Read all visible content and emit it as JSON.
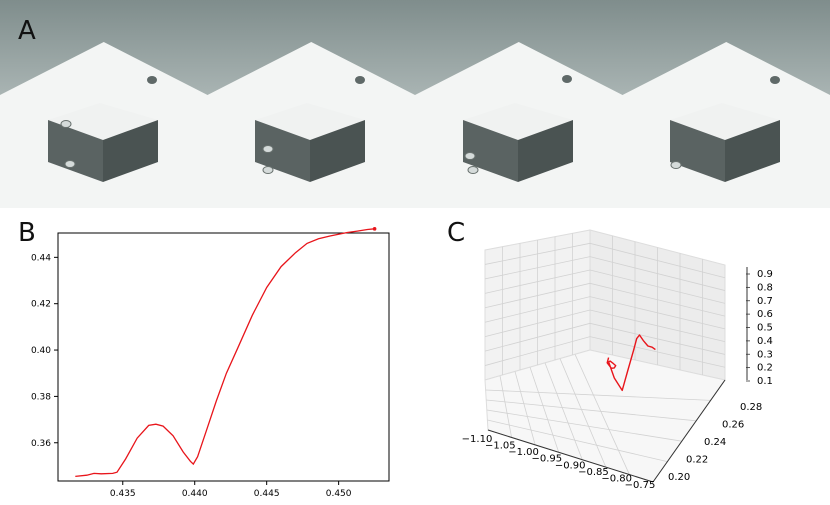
{
  "panels": {
    "a_label": "A",
    "b_label": "B",
    "c_label": "C"
  },
  "frames": [
    {
      "name": "frame-1"
    },
    {
      "name": "frame-2"
    },
    {
      "name": "frame-3"
    },
    {
      "name": "frame-4"
    }
  ],
  "colors": {
    "wall": "#8e9c9b",
    "floor": "#f3f5f4",
    "box_top": "#f0f2f1",
    "box_left": "#5a6362",
    "box_right": "#4a5352",
    "line": "#e8151b"
  },
  "chart_data": [
    {
      "type": "line",
      "title": "",
      "xlabel": "",
      "ylabel": "",
      "xlim": [
        0.4305,
        0.4535
      ],
      "ylim": [
        0.3435,
        0.4505
      ],
      "xticks": [
        "0.435",
        "0.440",
        "0.445",
        "0.450"
      ],
      "xtick_values": [
        0.435,
        0.44,
        0.445,
        0.45
      ],
      "yticks": [
        "0.36",
        "0.38",
        "0.40",
        "0.42",
        "0.44"
      ],
      "ytick_values": [
        0.36,
        0.38,
        0.4,
        0.42,
        0.44
      ],
      "series": [
        {
          "x": [
            0.4317,
            0.4325,
            0.433,
            0.4335,
            0.4343,
            0.4346,
            0.4352,
            0.436,
            0.4368,
            0.4373,
            0.4378,
            0.4385,
            0.4392,
            0.4397,
            0.4399,
            0.4402,
            0.4408,
            0.4415,
            0.4422,
            0.443,
            0.444,
            0.445,
            0.446,
            0.447,
            0.4478,
            0.4486,
            0.4494,
            0.45,
            0.4506,
            0.4513,
            0.452,
            0.4525
          ],
          "y": [
            0.3455,
            0.346,
            0.3468,
            0.3466,
            0.3468,
            0.3473,
            0.353,
            0.362,
            0.3675,
            0.368,
            0.3672,
            0.363,
            0.356,
            0.352,
            0.3508,
            0.354,
            0.365,
            0.378,
            0.39,
            0.401,
            0.415,
            0.427,
            0.436,
            0.442,
            0.446,
            0.448,
            0.4492,
            0.45,
            0.4507,
            0.4513,
            0.452,
            0.4523
          ]
        }
      ]
    },
    {
      "type": "line",
      "title": "",
      "xlabel": "",
      "ylabel": "",
      "xlim": [
        -1.1,
        -0.75
      ],
      "ylim": [
        0.2,
        0.28
      ],
      "zlim": [
        0.1,
        0.9
      ],
      "xticks": [
        "−1.10",
        "−1.05",
        "−1.00",
        "−0.95",
        "−0.90",
        "−0.85",
        "−0.80",
        "−0.75"
      ],
      "yticks": [
        "0.20",
        "0.22",
        "0.24",
        "0.26",
        "0.28"
      ],
      "zticks": [
        "0.1",
        "0.2",
        "0.3",
        "0.4",
        "0.5",
        "0.6",
        "0.7",
        "0.8",
        "0.9"
      ],
      "series": [
        {
          "x": [
            -0.93,
            -0.935,
            -0.928,
            -0.92,
            -0.915,
            -0.918,
            -0.925,
            -0.93,
            -0.92,
            -0.905,
            -0.895,
            -0.885,
            -0.88,
            -0.876,
            -0.87,
            -0.862,
            -0.855,
            -0.85
          ],
          "y": [
            0.245,
            0.246,
            0.247,
            0.246,
            0.245,
            0.244,
            0.244,
            0.245,
            0.246,
            0.247,
            0.248,
            0.249,
            0.25,
            0.251,
            0.252,
            0.253,
            0.254,
            0.255
          ],
          "z": [
            0.38,
            0.33,
            0.29,
            0.31,
            0.34,
            0.36,
            0.37,
            0.35,
            0.24,
            0.16,
            0.3,
            0.44,
            0.52,
            0.54,
            0.5,
            0.46,
            0.45,
            0.43
          ]
        }
      ]
    }
  ]
}
